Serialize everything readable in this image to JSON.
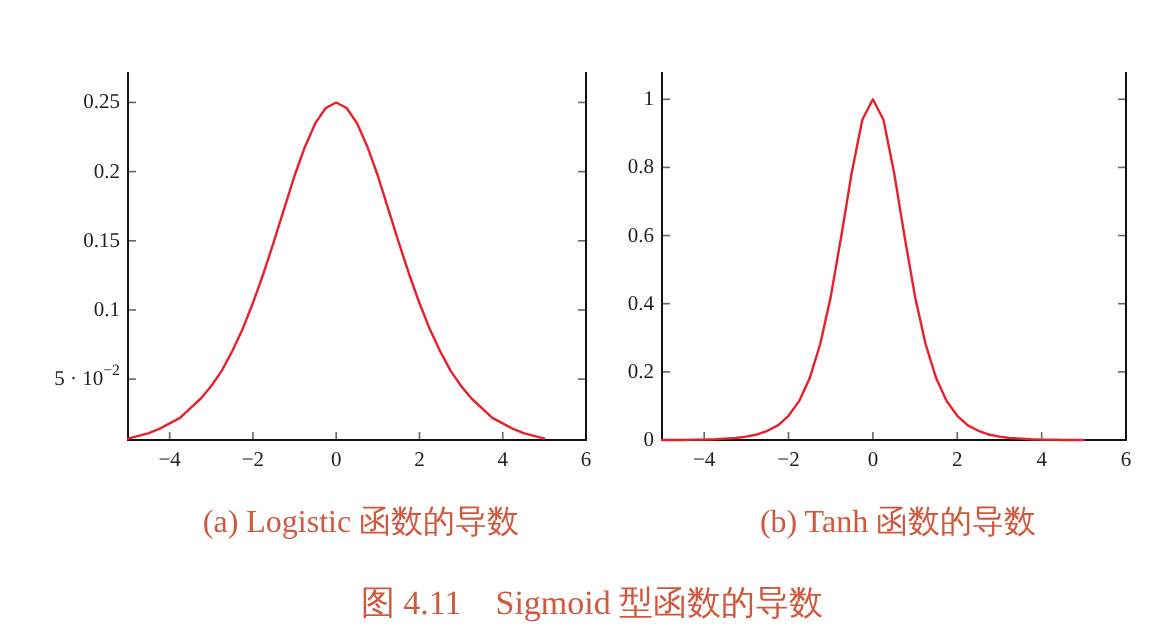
{
  "chart_data": [
    {
      "type": "line",
      "title": "(a) Logistic 函数的导数",
      "x": [
        -5,
        -4.75,
        -4.5,
        -4.25,
        -4,
        -3.75,
        -3.5,
        -3.25,
        -3,
        -2.75,
        -2.5,
        -2.25,
        -2,
        -1.75,
        -1.5,
        -1.25,
        -1,
        -0.75,
        -0.5,
        -0.25,
        0,
        0.25,
        0.5,
        0.75,
        1,
        1.25,
        1.5,
        1.75,
        2,
        2.25,
        2.5,
        2.75,
        3,
        3.25,
        3.5,
        3.75,
        4,
        4.25,
        4.5,
        4.75,
        5
      ],
      "series": [
        {
          "color": "#e8202a",
          "values": [
            0.007,
            0.009,
            0.011,
            0.014,
            0.018,
            0.022,
            0.029,
            0.036,
            0.045,
            0.056,
            0.07,
            0.086,
            0.105,
            0.126,
            0.149,
            0.173,
            0.197,
            0.218,
            0.235,
            0.246,
            0.25,
            0.246,
            0.235,
            0.218,
            0.197,
            0.173,
            0.149,
            0.126,
            0.105,
            0.086,
            0.07,
            0.056,
            0.045,
            0.036,
            0.029,
            0.022,
            0.018,
            0.014,
            0.011,
            0.009,
            0.007
          ]
        }
      ],
      "xlim": [
        -5,
        6
      ],
      "ylim": [
        0.006,
        0.272
      ],
      "xticks": [
        -4,
        -2,
        0,
        2,
        4,
        6
      ],
      "yticks": [
        {
          "value": 0.05,
          "label": "5 · 10$^{−2}$"
        },
        0.1,
        0.15,
        0.2,
        0.25
      ],
      "annotations": [
        "图 4.11　Sigmoid 型函数的导数"
      ]
    },
    {
      "type": "line",
      "title": "(b) Tanh 函数的导数",
      "x": [
        -5,
        -4.75,
        -4.5,
        -4.25,
        -4,
        -3.75,
        -3.5,
        -3.25,
        -3,
        -2.75,
        -2.5,
        -2.25,
        -2,
        -1.75,
        -1.5,
        -1.25,
        -1,
        -0.75,
        -0.5,
        -0.25,
        0,
        0.25,
        0.5,
        0.75,
        1,
        1.25,
        1.5,
        1.75,
        2,
        2.25,
        2.5,
        2.75,
        3,
        3.25,
        3.5,
        3.75,
        4,
        4.25,
        4.5,
        4.75,
        5
      ],
      "series": [
        {
          "color": "#e8202a",
          "values": [
            0.0,
            0.0,
            0.0,
            0.001,
            0.001,
            0.002,
            0.004,
            0.006,
            0.01,
            0.016,
            0.027,
            0.043,
            0.071,
            0.114,
            0.181,
            0.281,
            0.42,
            0.598,
            0.786,
            0.94,
            1,
            0.94,
            0.786,
            0.598,
            0.42,
            0.281,
            0.181,
            0.114,
            0.071,
            0.043,
            0.027,
            0.016,
            0.01,
            0.006,
            0.004,
            0.002,
            0.001,
            0.001,
            0.0,
            0.0,
            0.0
          ]
        }
      ],
      "xlim": [
        -5,
        6
      ],
      "ylim": [
        0,
        1.08
      ],
      "xticks": [
        -4,
        -2,
        0,
        2,
        4,
        6
      ],
      "yticks": [
        0,
        0.2,
        0.4,
        0.6,
        0.8,
        1
      ]
    }
  ]
}
